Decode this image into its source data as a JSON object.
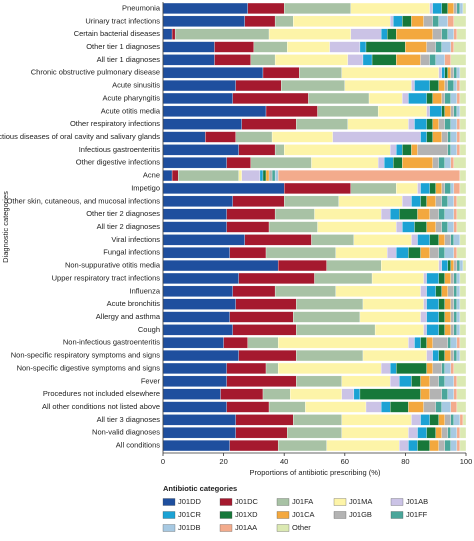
{
  "chart_data": {
    "type": "stacked-bar-horizontal",
    "y_label": "Diagnostic categories",
    "x_label": "Proportions of antibiotic prescribing (%)",
    "legend_title": "Antibiotic categories",
    "categories": [
      "Pneumonia",
      "Urinary tract infections",
      "Certain bacterial diseases",
      "Other tier 1 diagnoses",
      "All tier 1 diagnoses",
      "Chronic obstructive pulmonary disease",
      "Acute sinusitis",
      "Acute pharyngitis",
      "Acute otitis media",
      "Other respiratory infections",
      "Infectious diseases of oral cavity and salivary glands",
      "Infectious gastroenteritis",
      "Other digestive infections",
      "Acne",
      "Impetigo",
      "Other skin, cutaneous, and mucosal infections",
      "Other tier 2 diagnoses",
      "All tier 2 diagnoses",
      "Viral infections",
      "Fungal infections",
      "Non-suppurative otitis media",
      "Upper respiratory tract infections",
      "Influenza",
      "Acute bronchitis",
      "Allergy and asthma",
      "Cough",
      "Non-infectious gastroenteritis",
      "Non-specific respiratory symptoms and signs",
      "Non-specific digestive symptoms and signs",
      "Fever",
      "Procedures not included elsewhere",
      "All other conditions not listed above",
      "All tier 3 diagnoses",
      "Non-valid diagnoses",
      "All conditions"
    ],
    "series": [
      {
        "name": "J01DD",
        "color": "#1f4f9e",
        "values": [
          28,
          27,
          3,
          17,
          17,
          33,
          24,
          23,
          34,
          26,
          14,
          25,
          21,
          3,
          40,
          23,
          21,
          21,
          27,
          22,
          38,
          25,
          23,
          24,
          22,
          23,
          20,
          25,
          21,
          21,
          19,
          21,
          24,
          24,
          22
        ]
      },
      {
        "name": "J01DC",
        "color": "#a5192e",
        "values": [
          12,
          10,
          1,
          13,
          12,
          12,
          15,
          25,
          17,
          18,
          10,
          12,
          8,
          2,
          22,
          17,
          16,
          14,
          22,
          12,
          16,
          25,
          14,
          20,
          21,
          21,
          8,
          19,
          13,
          23,
          14,
          14,
          19,
          17,
          16
        ]
      },
      {
        "name": "J01FA",
        "color": "#a8c2a5",
        "values": [
          22,
          6,
          31,
          11,
          8,
          14,
          21,
          20,
          20,
          17,
          12,
          3,
          20,
          20,
          15,
          18,
          13,
          16,
          14,
          23,
          18,
          19,
          20,
          22,
          22,
          26,
          10,
          22,
          4,
          15,
          9,
          12,
          16,
          18,
          16
        ]
      },
      {
        "name": "J01MA",
        "color": "#fdf4a8",
        "values": [
          26,
          32,
          27,
          14,
          24,
          32,
          22,
          11,
          16,
          20,
          20,
          35,
          22,
          1,
          7,
          21,
          22,
          26,
          19,
          17,
          19,
          17,
          28,
          20,
          20,
          16,
          43,
          21,
          34,
          16,
          17,
          20,
          23,
          22,
          24
        ]
      },
      {
        "name": "J01AB",
        "color": "#cbc3e6",
        "values": [
          1,
          1,
          10,
          10,
          5,
          1,
          1,
          2,
          1,
          2,
          29,
          2,
          2,
          6,
          1,
          3,
          3,
          2,
          2,
          3,
          1,
          1,
          2,
          1,
          2,
          1,
          2,
          2,
          3,
          3,
          4,
          5,
          3,
          3,
          3
        ]
      },
      {
        "name": "J01CR",
        "color": "#1ba2d4",
        "values": [
          3,
          3,
          2,
          2,
          3,
          1,
          5,
          6,
          4,
          4,
          2,
          2,
          3,
          1,
          3,
          3,
          3,
          4,
          4,
          4,
          2,
          4,
          3,
          4,
          4,
          4,
          2,
          2,
          2,
          4,
          2,
          3,
          3,
          3,
          3
        ]
      },
      {
        "name": "J01XD",
        "color": "#17783a",
        "values": [
          2,
          3,
          3,
          13,
          8,
          1,
          3,
          2,
          1,
          2,
          2,
          3,
          3,
          1,
          2,
          2,
          6,
          4,
          3,
          4,
          1,
          2,
          2,
          2,
          2,
          2,
          2,
          2,
          10,
          3,
          20,
          6,
          3,
          3,
          4
        ]
      },
      {
        "name": "J01CA",
        "color": "#f3a83e",
        "values": [
          2,
          4,
          12,
          7,
          8,
          1,
          2,
          3,
          2,
          2,
          3,
          2,
          10,
          1,
          2,
          3,
          4,
          3,
          2,
          3,
          1,
          2,
          2,
          2,
          2,
          2,
          2,
          2,
          2,
          3,
          3,
          5,
          2,
          2,
          3
        ]
      },
      {
        "name": "J01GB",
        "color": "#b3b3b3",
        "values": [
          1,
          3,
          3,
          3,
          3,
          1,
          1,
          1,
          1,
          2,
          2,
          10,
          2,
          1,
          1,
          2,
          3,
          2,
          2,
          3,
          1,
          1,
          2,
          1,
          1,
          1,
          5,
          1,
          3,
          3,
          4,
          4,
          2,
          2,
          2
        ]
      },
      {
        "name": "J01FF",
        "color": "#4aa69a",
        "values": [
          1,
          2,
          2,
          2,
          2,
          1,
          2,
          2,
          1,
          2,
          1,
          1,
          2,
          1,
          2,
          2,
          2,
          2,
          1,
          2,
          1,
          1,
          1,
          1,
          1,
          1,
          1,
          1,
          1,
          2,
          2,
          2,
          1,
          1,
          2
        ]
      },
      {
        "name": "J01DB",
        "color": "#a7c9e2",
        "values": [
          1,
          3,
          2,
          3,
          3,
          1,
          1,
          2,
          1,
          2,
          2,
          2,
          2,
          1,
          1,
          2,
          3,
          2,
          2,
          3,
          1,
          1,
          1,
          1,
          1,
          1,
          2,
          1,
          2,
          3,
          2,
          3,
          2,
          2,
          2
        ]
      },
      {
        "name": "J01AA",
        "color": "#f3ab8c",
        "values": [
          0,
          2,
          1,
          1,
          2,
          0,
          1,
          1,
          0,
          1,
          1,
          1,
          1,
          60,
          2,
          1,
          1,
          1,
          0,
          1,
          0,
          0,
          0,
          0,
          0,
          0,
          1,
          0,
          1,
          1,
          1,
          2,
          1,
          1,
          1
        ]
      },
      {
        "name": "Other",
        "color": "#dbe9b2",
        "values": [
          1,
          4,
          3,
          4,
          5,
          2,
          2,
          2,
          2,
          2,
          2,
          2,
          4,
          2,
          2,
          3,
          3,
          3,
          2,
          3,
          1,
          2,
          2,
          2,
          2,
          2,
          2,
          2,
          4,
          3,
          3,
          3,
          1,
          2,
          2
        ]
      }
    ],
    "xlim": [
      0,
      100
    ],
    "xticks": [
      0,
      20,
      40,
      60,
      80,
      100
    ],
    "legend_columns": 5
  }
}
